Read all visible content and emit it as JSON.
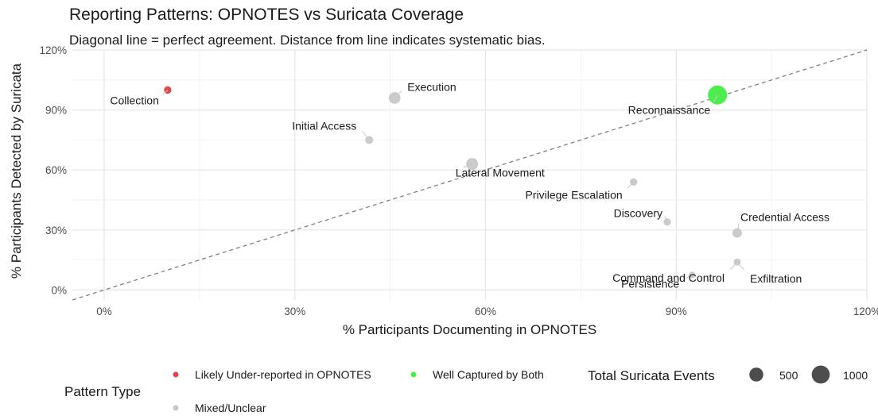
{
  "title": "Reporting Patterns: OPNOTES vs Suricata Coverage",
  "subtitle": "Diagonal line = perfect agreement. Distance from line indicates systematic bias.",
  "colors": {
    "under_reported": "#e0474c",
    "well_captured": "#4ded4d",
    "mixed": "#c8c8c8",
    "diagonal": "#808080",
    "grid_major": "#e6e6e6",
    "grid_minor": "#f2f2f2"
  },
  "chart_data": {
    "type": "scatter",
    "title": "Reporting Patterns: OPNOTES vs Suricata Coverage",
    "xlabel": "% Participants Documenting in OPNOTES",
    "ylabel": "% Participants Detected by Suricata",
    "xlim": [
      -5,
      120
    ],
    "ylim": [
      -5,
      120
    ],
    "x_ticks": [
      0,
      30,
      60,
      90,
      120
    ],
    "y_ticks": [
      0,
      30,
      60,
      90,
      120
    ],
    "x_tick_labels": [
      "0%",
      "30%",
      "60%",
      "90%",
      "120%"
    ],
    "y_tick_labels": [
      "0%",
      "30%",
      "60%",
      "90%",
      "120%"
    ],
    "grid": true,
    "reference_line": "y = x (dashed)",
    "points": [
      {
        "label": "Collection",
        "x": 10,
        "y": 100,
        "events": 60,
        "pattern": "under_reported"
      },
      {
        "label": "Execution",
        "x": 45.7,
        "y": 96,
        "events": 300,
        "pattern": "mixed"
      },
      {
        "label": "Reconnaissance",
        "x": 96.5,
        "y": 97.5,
        "events": 1150,
        "pattern": "well_captured"
      },
      {
        "label": "Initial Access",
        "x": 41.7,
        "y": 75,
        "events": 80,
        "pattern": "mixed"
      },
      {
        "label": "Lateral Movement",
        "x": 57.9,
        "y": 63,
        "events": 320,
        "pattern": "mixed"
      },
      {
        "label": "Privilege Escalation",
        "x": 83.3,
        "y": 54,
        "events": 60,
        "pattern": "mixed"
      },
      {
        "label": "Discovery",
        "x": 88.6,
        "y": 34,
        "events": 60,
        "pattern": "mixed"
      },
      {
        "label": "Credential Access",
        "x": 99.6,
        "y": 28.5,
        "events": 150,
        "pattern": "mixed"
      },
      {
        "label": "Command and Control",
        "x": 99.6,
        "y": 14,
        "events": 40,
        "pattern": "mixed"
      },
      {
        "label": "Exfiltration",
        "x": 99.6,
        "y": 14,
        "events": 40,
        "pattern": "mixed"
      },
      {
        "label": "Persistence",
        "x": 92.5,
        "y": 7.5,
        "events": 40,
        "pattern": "mixed"
      }
    ],
    "legend": {
      "pattern_title": "Pattern Type",
      "patterns": [
        {
          "key": "under_reported",
          "label": "Likely Under-reported in OPNOTES"
        },
        {
          "key": "well_captured",
          "label": "Well Captured by Both"
        },
        {
          "key": "mixed",
          "label": "Mixed/Unclear"
        }
      ],
      "size_title": "Total Suricata Events",
      "sizes": [
        {
          "value": 500,
          "label": "500"
        },
        {
          "value": 1000,
          "label": "1000"
        }
      ]
    }
  }
}
